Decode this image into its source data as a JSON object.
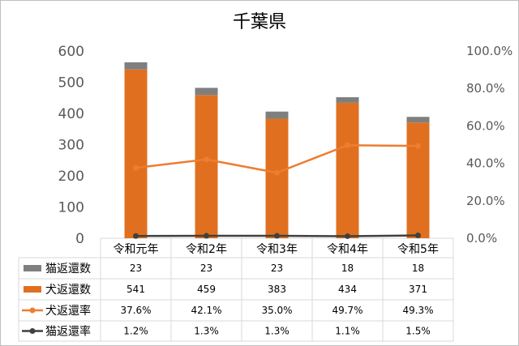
{
  "chart_data": {
    "type": "bar",
    "title": "千葉県",
    "categories": [
      "令和元年",
      "令和2年",
      "令和3年",
      "令和4年",
      "令和5年"
    ],
    "y_left": {
      "min": 0,
      "max": 600,
      "ticks": [
        "0",
        "100",
        "200",
        "300",
        "400",
        "500",
        "600"
      ]
    },
    "y_right": {
      "min": 0,
      "max": 100,
      "ticks": [
        "0.0%",
        "20.0%",
        "40.0%",
        "60.0%",
        "80.0%",
        "100.0%"
      ]
    },
    "series": [
      {
        "name": "猫返還数",
        "type": "stacked-bar",
        "axis": "left",
        "color": "#7f7f7f",
        "values": [
          23,
          23,
          23,
          18,
          18
        ],
        "labels": [
          "23",
          "23",
          "23",
          "18",
          "18"
        ]
      },
      {
        "name": "犬返還数",
        "type": "stacked-bar",
        "axis": "left",
        "color": "#e07020",
        "values": [
          541,
          459,
          383,
          434,
          371
        ],
        "labels": [
          "541",
          "459",
          "383",
          "434",
          "371"
        ]
      },
      {
        "name": "犬返還率",
        "type": "line",
        "axis": "right",
        "color": "#ed7d31",
        "values": [
          37.6,
          42.1,
          35.0,
          49.7,
          49.3
        ],
        "labels": [
          "37.6%",
          "42.1%",
          "35.0%",
          "49.7%",
          "49.3%"
        ]
      },
      {
        "name": "猫返還率",
        "type": "line",
        "axis": "right",
        "color": "#404040",
        "values": [
          1.2,
          1.3,
          1.3,
          1.1,
          1.5
        ],
        "labels": [
          "1.2%",
          "1.3%",
          "1.3%",
          "1.1%",
          "1.5%"
        ]
      }
    ],
    "grid": false,
    "legend": "data-table"
  }
}
